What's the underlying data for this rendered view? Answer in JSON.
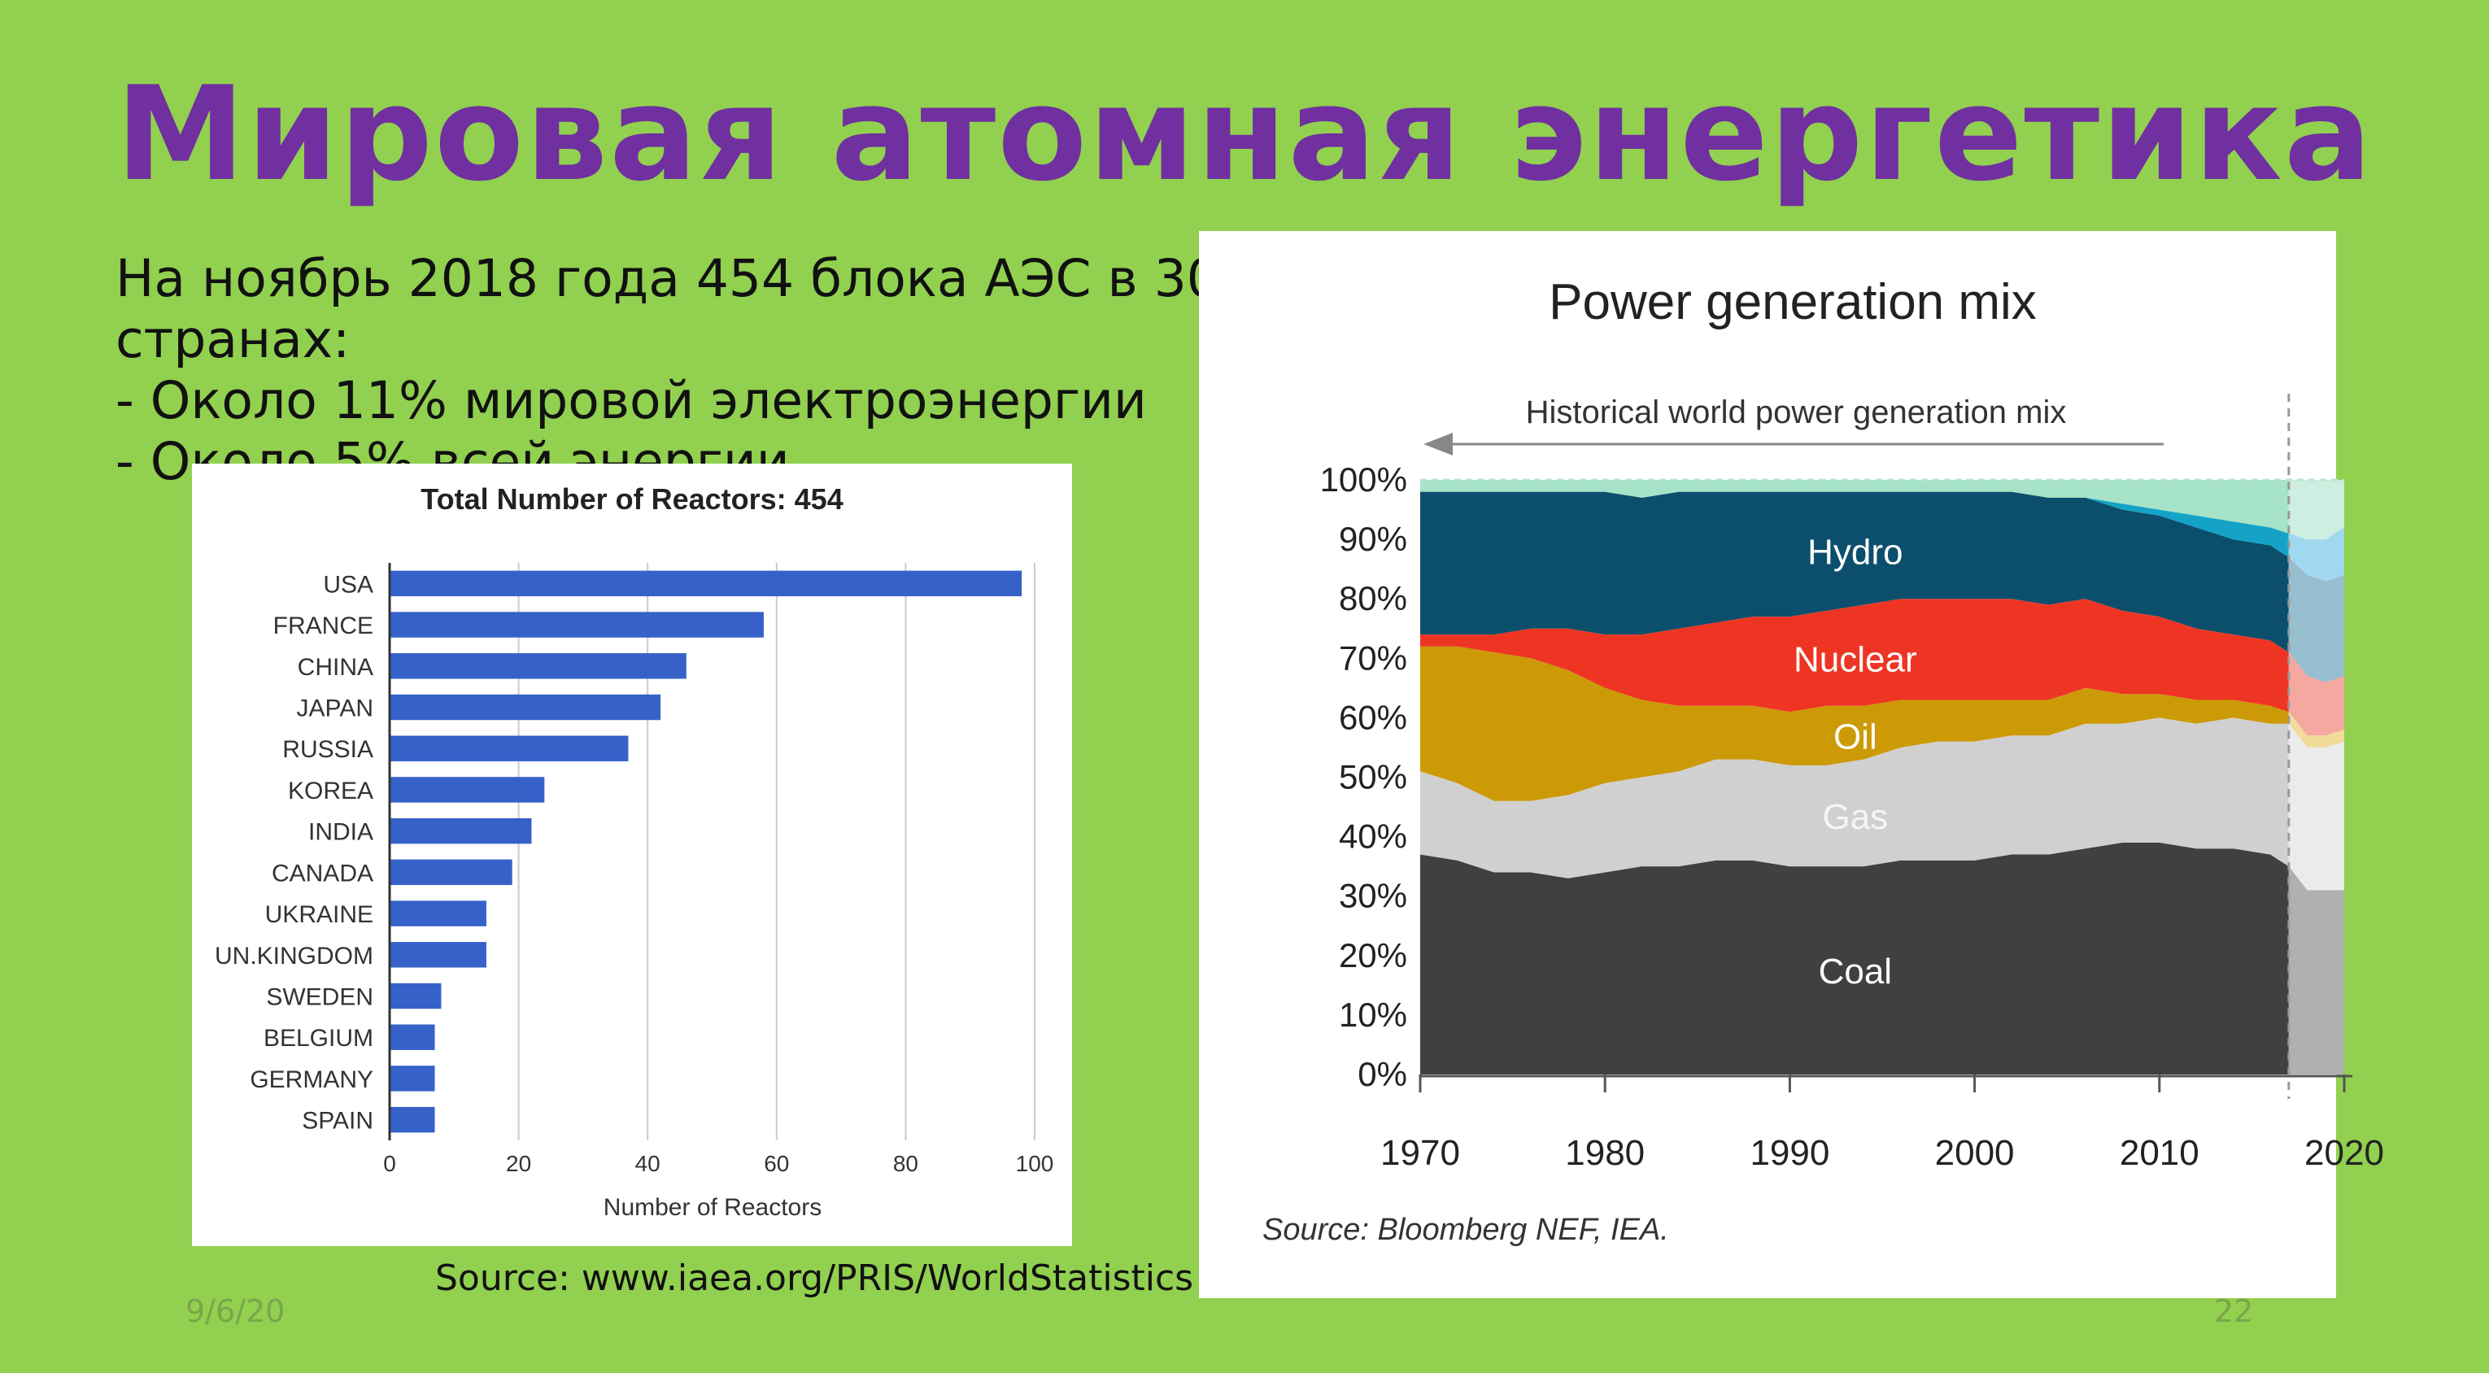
{
  "slide": {
    "title": "Мировая атомная энергетика",
    "bullets": [
      "На ноябрь 2018 года 454 блока АЭС в 30",
      "странах:",
      "- Около 11% мировой электроэнергии",
      "- Около 5% всей энергии"
    ],
    "source": "Source: www.iaea.org/PRIS/WorldStatistics",
    "date": "9/6/20",
    "page_number": "22"
  },
  "chart_data": [
    {
      "type": "bar",
      "orientation": "horizontal",
      "title": "Total Number of Reactors: 454",
      "xlabel": "Number of Reactors",
      "ylabel": "",
      "xlim": [
        0,
        100
      ],
      "x_ticks": [
        0,
        20,
        40,
        60,
        80,
        100
      ],
      "grid": true,
      "bar_color": "#3661c9",
      "categories": [
        "USA",
        "FRANCE",
        "CHINA",
        "JAPAN",
        "RUSSIA",
        "KOREA",
        "INDIA",
        "CANADA",
        "UKRAINE",
        "UN.KINGDOM",
        "SWEDEN",
        "BELGIUM",
        "GERMANY",
        "SPAIN"
      ],
      "values": [
        98,
        58,
        46,
        42,
        37,
        24,
        22,
        19,
        15,
        15,
        8,
        7,
        7,
        7
      ]
    },
    {
      "type": "area",
      "stacked": true,
      "title": "Power generation mix",
      "annotation": "Historical world power generation mix",
      "source": "Source: Bloomberg NEF, IEA.",
      "x_ticks": [
        1970,
        1980,
        1990,
        2000,
        2010,
        2020
      ],
      "y_ticks": [
        "0%",
        "10%",
        "20%",
        "30%",
        "40%",
        "50%",
        "60%",
        "70%",
        "80%",
        "90%",
        "100%"
      ],
      "xlim": [
        1970,
        2020
      ],
      "ylim": [
        0,
        100
      ],
      "historical_end": 2017,
      "x": [
        1970,
        1972,
        1974,
        1976,
        1978,
        1980,
        1982,
        1984,
        1986,
        1988,
        1990,
        1992,
        1994,
        1996,
        1998,
        2000,
        2002,
        2004,
        2006,
        2008,
        2010,
        2012,
        2014,
        2016,
        2017
      ],
      "series": [
        {
          "name": "Coal",
          "color": "#404040",
          "values": [
            37,
            36,
            34,
            34,
            33,
            34,
            35,
            35,
            36,
            36,
            35,
            35,
            35,
            36,
            36,
            36,
            37,
            37,
            38,
            39,
            39,
            38,
            38,
            37,
            35
          ]
        },
        {
          "name": "Gas",
          "color": "#d0d0d0",
          "values": [
            14,
            13,
            12,
            12,
            14,
            15,
            15,
            16,
            17,
            17,
            17,
            17,
            18,
            19,
            20,
            20,
            20,
            20,
            21,
            20,
            21,
            21,
            22,
            22,
            24
          ]
        },
        {
          "name": "Oil",
          "color": "#cc9a06",
          "values": [
            21,
            23,
            25,
            24,
            21,
            16,
            13,
            11,
            9,
            9,
            9,
            10,
            9,
            8,
            7,
            7,
            6,
            6,
            6,
            5,
            4,
            4,
            3,
            3,
            2
          ]
        },
        {
          "name": "Nuclear",
          "color": "#ee3524",
          "values": [
            2,
            2,
            3,
            5,
            7,
            9,
            11,
            13,
            14,
            15,
            16,
            16,
            17,
            17,
            17,
            17,
            17,
            16,
            15,
            14,
            13,
            12,
            11,
            11,
            10
          ]
        },
        {
          "name": "Hydro",
          "color": "#0b4f6c",
          "values": [
            24,
            24,
            24,
            23,
            23,
            24,
            23,
            23,
            22,
            21,
            21,
            20,
            19,
            18,
            18,
            18,
            18,
            18,
            17,
            17,
            17,
            17,
            16,
            16,
            16
          ]
        },
        {
          "name": "",
          "color": "#14a3c7",
          "values": [
            0,
            0,
            0,
            0,
            0,
            0,
            0,
            0,
            0,
            0,
            0,
            0,
            0,
            0,
            0,
            0,
            0,
            0,
            0,
            1,
            1,
            2,
            3,
            3,
            4
          ]
        },
        {
          "name": "",
          "color": "#a6e3c8",
          "values": [
            2,
            2,
            2,
            2,
            2,
            2,
            3,
            2,
            2,
            2,
            2,
            2,
            2,
            2,
            2,
            2,
            2,
            3,
            3,
            4,
            5,
            6,
            7,
            8,
            9
          ]
        }
      ],
      "projection": {
        "x": [
          2017,
          2018,
          2019,
          2020
        ],
        "series": [
          {
            "color": "#b0b0b0",
            "values": [
              35,
              31,
              31,
              31
            ]
          },
          {
            "color": "#ebebeb",
            "values": [
              24,
              24,
              24,
              25
            ]
          },
          {
            "color": "#f2dc9a",
            "values": [
              2,
              2,
              2,
              2
            ]
          },
          {
            "color": "#f5a8a0",
            "values": [
              10,
              10,
              9,
              9
            ]
          },
          {
            "color": "#97bfcf",
            "values": [
              16,
              17,
              17,
              17
            ]
          },
          {
            "color": "#a0d8ef",
            "values": [
              4,
              6,
              7,
              8
            ]
          },
          {
            "color": "#cdeee0",
            "values": [
              9,
              10,
              10,
              8
            ]
          }
        ]
      }
    }
  ]
}
